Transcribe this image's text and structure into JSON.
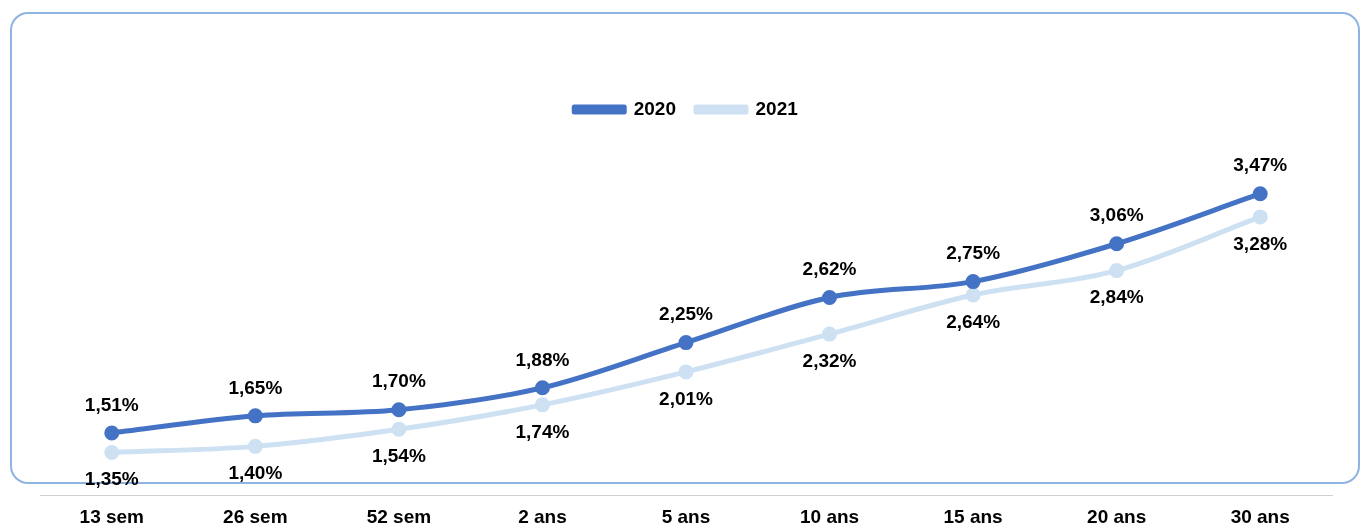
{
  "chart_data": {
    "type": "line",
    "categories": [
      "13 sem",
      "26 sem",
      "52 sem",
      "2 ans",
      "5 ans",
      "10 ans",
      "15 ans",
      "20 ans",
      "30 ans"
    ],
    "series": [
      {
        "name": "2020",
        "color": "#4472c4",
        "values": [
          1.51,
          1.65,
          1.7,
          1.88,
          2.25,
          2.62,
          2.75,
          3.06,
          3.47
        ],
        "value_labels": [
          "1,51%",
          "1,65%",
          "1,70%",
          "1,88%",
          "2,25%",
          "2,62%",
          "2,75%",
          "3,06%",
          "3,47%"
        ]
      },
      {
        "name": "2021",
        "color": "#cde1f3",
        "values": [
          1.35,
          1.4,
          1.54,
          1.74,
          2.01,
          2.32,
          2.64,
          2.84,
          3.28
        ],
        "value_labels": [
          "1,35%",
          "1,40%",
          "1,54%",
          "1,74%",
          "2,01%",
          "2,32%",
          "2,64%",
          "2,84%",
          "3,28%"
        ]
      }
    ],
    "legend": "top",
    "marker": "circle",
    "grid": false,
    "tick_labels": "x"
  }
}
